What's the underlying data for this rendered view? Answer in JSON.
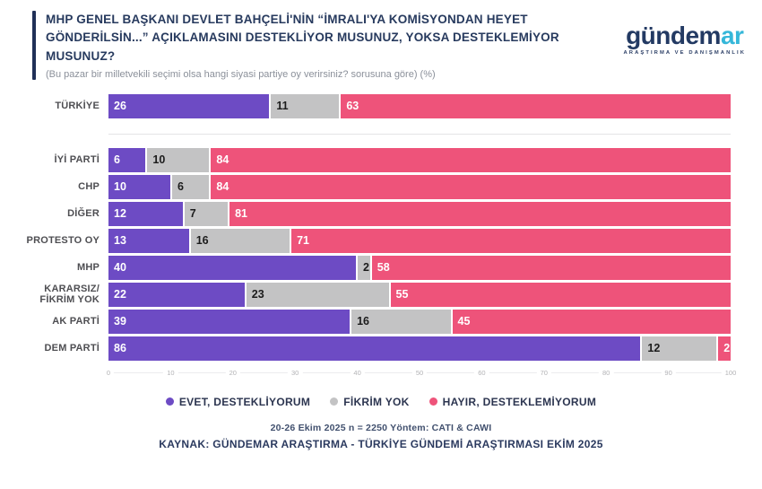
{
  "header": {
    "title": "MHP GENEL BAŞKANI DEVLET BAHÇELİ'NİN “İMRALI'YA KOMİSYONDAN HEYET GÖNDERİLSİN...” AÇIKLAMASINI DESTEKLİYOR MUSUNUZ, YOKSA DESTEKLEMİYOR MUSUNUZ?",
    "subtitle": "(Bu pazar bir milletvekili seçimi olsa hangi siyasi partiye oy verirsiniz? sorusuna göre) (%)"
  },
  "logo": {
    "word_main": "gündem",
    "word_accent": "ar",
    "tagline": "ARAŞTIRMA VE DANIŞMANLIK",
    "color_main": "#233a63",
    "color_accent": "#35b7d9"
  },
  "chart_data": {
    "type": "bar",
    "orientation": "horizontal",
    "stacked": true,
    "categories": [
      "TÜRKİYE",
      "İYİ PARTİ",
      "CHP",
      "DİĞER",
      "PROTESTO OY",
      "MHP",
      "KARARSIZ/ FİKRİM YOK",
      "AK PARTİ",
      "DEM PARTİ"
    ],
    "series": [
      {
        "name": "EVET, DESTEKLİYORUM",
        "color": "#6d4bc4",
        "label_color": "#ffffff",
        "values": [
          26,
          6,
          10,
          12,
          13,
          40,
          22,
          39,
          86
        ]
      },
      {
        "name": "FİKRİM YOK",
        "color": "#c3c3c4",
        "label_color": "#1c1c1c",
        "values": [
          11,
          10,
          6,
          7,
          16,
          2,
          23,
          16,
          12
        ]
      },
      {
        "name": "HAYIR, DESTEKLEMİYORUM",
        "color": "#ee537a",
        "label_color": "#ffffff",
        "values": [
          63,
          84,
          84,
          81,
          71,
          58,
          55,
          45,
          2
        ]
      }
    ],
    "xlim": [
      0,
      100
    ],
    "x_ticks": [
      0,
      10,
      20,
      30,
      40,
      50,
      60,
      70,
      80,
      90,
      100
    ],
    "legend_position": "bottom",
    "first_row_separated": true
  },
  "footer": {
    "line1": "20-26 Ekim 2025 n = 2250 Yöntem: CATI & CAWI",
    "line2": "KAYNAK: GÜNDEMAR ARAŞTIRMA - TÜRKİYE GÜNDEMİ ARAŞTIRMASI EKİM 2025"
  }
}
